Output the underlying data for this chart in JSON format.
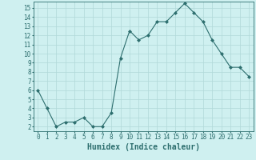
{
  "x": [
    0,
    1,
    2,
    3,
    4,
    5,
    6,
    7,
    8,
    9,
    10,
    11,
    12,
    13,
    14,
    15,
    16,
    17,
    18,
    19,
    20,
    21,
    22,
    23
  ],
  "y": [
    6.0,
    4.0,
    2.0,
    2.5,
    2.5,
    3.0,
    2.0,
    2.0,
    3.5,
    9.5,
    12.5,
    11.5,
    12.0,
    13.5,
    13.5,
    14.5,
    15.5,
    14.5,
    13.5,
    11.5,
    10.0,
    8.5,
    8.5,
    7.5
  ],
  "xlabel": "Humidex (Indice chaleur)",
  "xlim": [
    -0.5,
    23.5
  ],
  "ylim": [
    1.5,
    15.7
  ],
  "yticks": [
    2,
    3,
    4,
    5,
    6,
    7,
    8,
    9,
    10,
    11,
    12,
    13,
    14,
    15
  ],
  "xticks": [
    0,
    1,
    2,
    3,
    4,
    5,
    6,
    7,
    8,
    9,
    10,
    11,
    12,
    13,
    14,
    15,
    16,
    17,
    18,
    19,
    20,
    21,
    22,
    23
  ],
  "line_color": "#2d6e6e",
  "marker": "D",
  "marker_size": 2,
  "bg_color": "#cff0f0",
  "grid_color": "#b0d8d8",
  "tick_label_fontsize": 5.5,
  "xlabel_fontsize": 7
}
